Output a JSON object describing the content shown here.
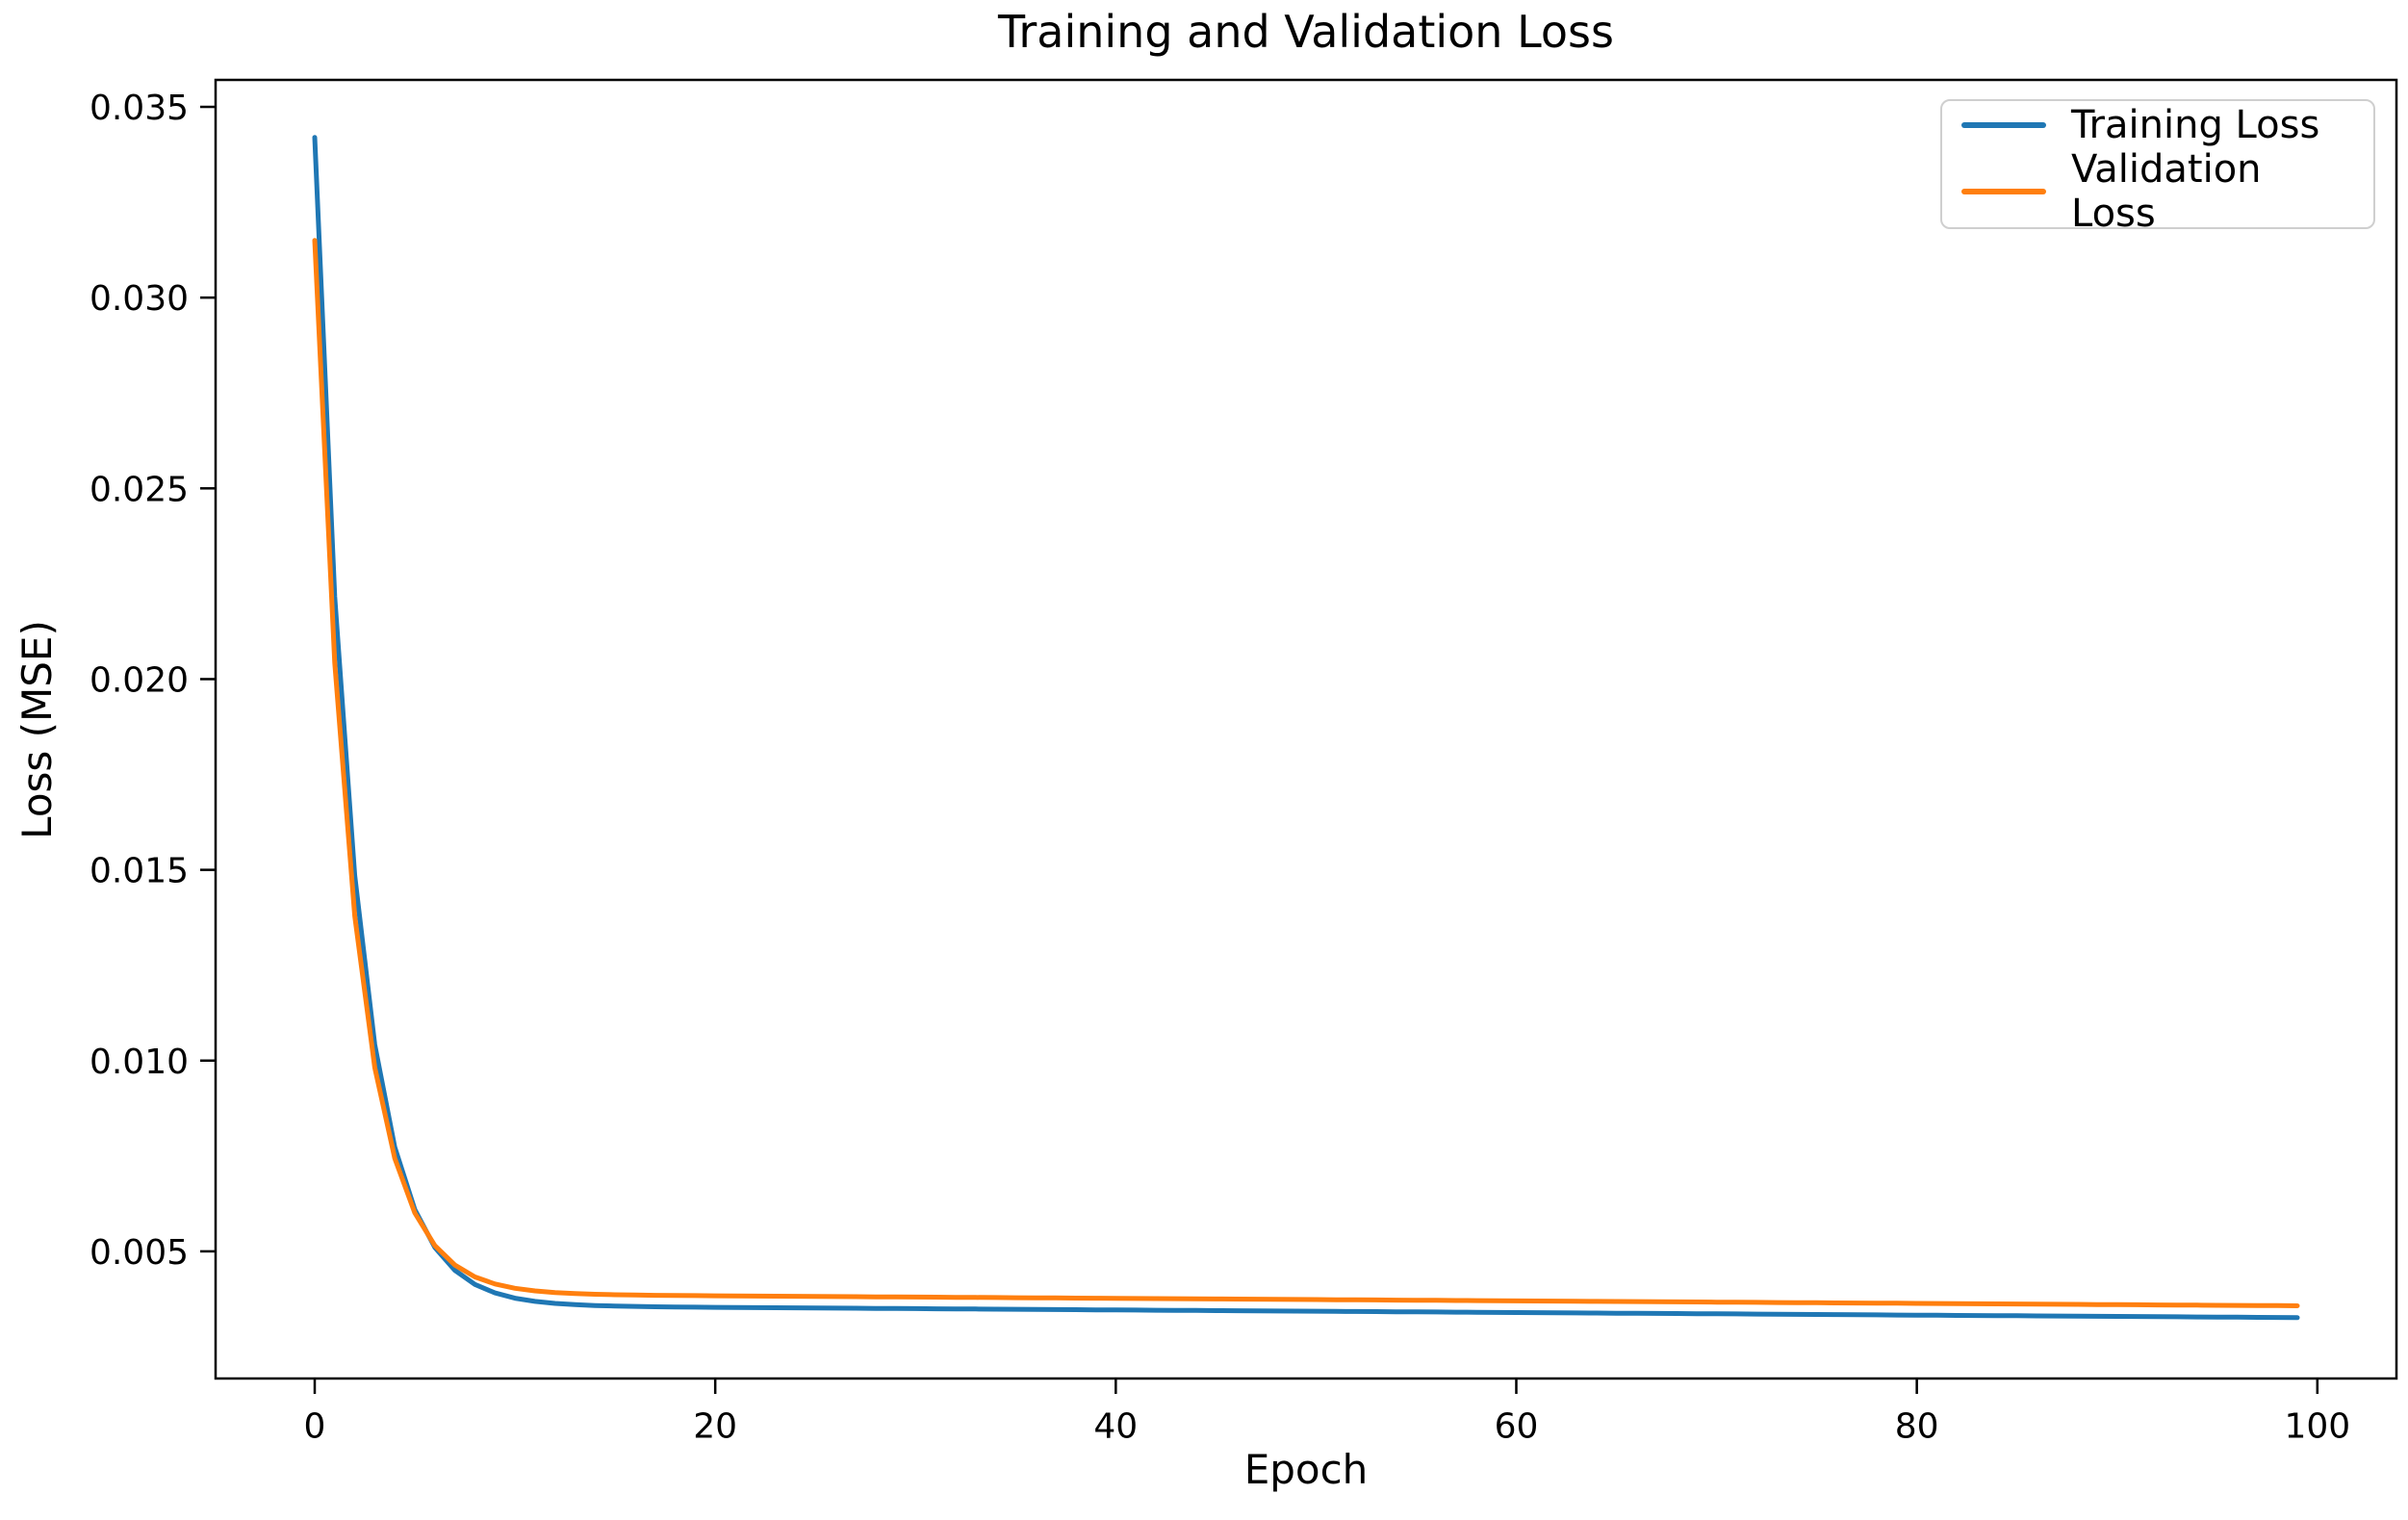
{
  "figure": {
    "title": "Training and Validation Loss",
    "xlabel": "Epoch",
    "ylabel": "Loss (MSE)"
  },
  "chart_data": {
    "type": "line",
    "title": "Training and Validation Loss",
    "xlabel": "Epoch",
    "ylabel": "Loss (MSE)",
    "grid": false,
    "legend_position": "upper right",
    "xlim": [
      -4.95,
      103.95
    ],
    "ylim": [
      0.001667,
      0.035707
    ],
    "x_ticks": {
      "values": [
        0,
        20,
        40,
        60,
        80,
        100
      ],
      "labels": [
        "0",
        "20",
        "40",
        "60",
        "80",
        "100"
      ]
    },
    "y_ticks": {
      "values": [
        0.005,
        0.01,
        0.015,
        0.02,
        0.025,
        0.03,
        0.035
      ],
      "labels": [
        "0.005",
        "0.010",
        "0.015",
        "0.020",
        "0.025",
        "0.030",
        "0.035"
      ]
    },
    "x": [
      0,
      1,
      2,
      3,
      4,
      5,
      6,
      7,
      8,
      9,
      10,
      11,
      12,
      13,
      14,
      15,
      16,
      17,
      18,
      19,
      20,
      21,
      22,
      23,
      24,
      25,
      26,
      27,
      28,
      29,
      30,
      31,
      32,
      33,
      34,
      35,
      36,
      37,
      38,
      39,
      40,
      41,
      42,
      43,
      44,
      45,
      46,
      47,
      48,
      49,
      50,
      51,
      52,
      53,
      54,
      55,
      56,
      57,
      58,
      59,
      60,
      61,
      62,
      63,
      64,
      65,
      66,
      67,
      68,
      69,
      70,
      71,
      72,
      73,
      74,
      75,
      76,
      77,
      78,
      79,
      80,
      81,
      82,
      83,
      84,
      85,
      86,
      87,
      88,
      89,
      90,
      91,
      92,
      93,
      94,
      95,
      96,
      97,
      98,
      99
    ],
    "series": [
      {
        "name": "Training Loss",
        "color": "#1f77b4",
        "values": [
          0.0342,
          0.022157,
          0.01485,
          0.010418,
          0.007728,
          0.006095,
          0.005103,
          0.0045,
          0.004133,
          0.003909,
          0.003772,
          0.003688,
          0.003635,
          0.003602,
          0.00358,
          0.003566,
          0.003556,
          0.003548,
          0.003542,
          0.003537,
          0.003532,
          0.003529,
          0.003525,
          0.003522,
          0.003518,
          0.003515,
          0.003512,
          0.003508,
          0.003505,
          0.003501,
          0.003498,
          0.003495,
          0.003491,
          0.003488,
          0.003484,
          0.003481,
          0.003478,
          0.003474,
          0.003471,
          0.003467,
          0.003464,
          0.003461,
          0.003457,
          0.003454,
          0.00345,
          0.003447,
          0.003444,
          0.00344,
          0.003437,
          0.003433,
          0.00343,
          0.003427,
          0.003423,
          0.00342,
          0.003416,
          0.003413,
          0.00341,
          0.003406,
          0.003403,
          0.003399,
          0.003396,
          0.003393,
          0.003389,
          0.003386,
          0.003382,
          0.003379,
          0.003376,
          0.003372,
          0.003369,
          0.003365,
          0.003362,
          0.003359,
          0.003355,
          0.003352,
          0.003348,
          0.003345,
          0.003342,
          0.003338,
          0.003335,
          0.003331,
          0.003328,
          0.003325,
          0.003321,
          0.003318,
          0.003314,
          0.003311,
          0.003308,
          0.003304,
          0.003301,
          0.003297,
          0.003294,
          0.003291,
          0.003287,
          0.003284,
          0.00328,
          0.003277,
          0.003274,
          0.00327,
          0.003267,
          0.003263
        ]
      },
      {
        "name": "Validation Loss",
        "color": "#ff7f0e",
        "values": [
          0.0315,
          0.020425,
          0.013791,
          0.009816,
          0.007435,
          0.006008,
          0.005153,
          0.004639,
          0.00433,
          0.004144,
          0.004031,
          0.003962,
          0.003919,
          0.003892,
          0.003875,
          0.003863,
          0.003855,
          0.003848,
          0.003843,
          0.003839,
          0.003834,
          0.003831,
          0.003827,
          0.003824,
          0.003821,
          0.003818,
          0.003814,
          0.003811,
          0.003808,
          0.003804,
          0.003801,
          0.003798,
          0.003794,
          0.003791,
          0.003788,
          0.003785,
          0.003781,
          0.003778,
          0.003775,
          0.003771,
          0.003768,
          0.003765,
          0.003761,
          0.003758,
          0.003755,
          0.003752,
          0.003748,
          0.003745,
          0.003742,
          0.003738,
          0.003735,
          0.003732,
          0.003728,
          0.003725,
          0.003722,
          0.003719,
          0.003715,
          0.003712,
          0.003709,
          0.003705,
          0.003702,
          0.003699,
          0.003695,
          0.003692,
          0.003689,
          0.003686,
          0.003682,
          0.003679,
          0.003676,
          0.003672,
          0.003669,
          0.003666,
          0.003662,
          0.003659,
          0.003656,
          0.003653,
          0.003649,
          0.003646,
          0.003643,
          0.003639,
          0.003636,
          0.003633,
          0.003629,
          0.003626,
          0.003623,
          0.00362,
          0.003616,
          0.003613,
          0.00361,
          0.003606,
          0.003603,
          0.0036,
          0.003596,
          0.003593,
          0.00359,
          0.003586,
          0.003583,
          0.00358,
          0.003577,
          0.003573
        ]
      }
    ]
  }
}
